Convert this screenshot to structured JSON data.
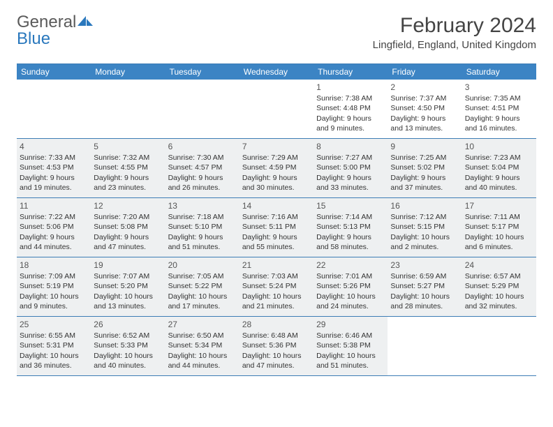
{
  "logo": {
    "general": "General",
    "blue": "Blue"
  },
  "header": {
    "title": "February 2024",
    "location": "Lingfield, England, United Kingdom"
  },
  "colors": {
    "header_bg": "#3c84c4",
    "border": "#3c7cb5",
    "shaded": "#eef0f1",
    "text": "#333333"
  },
  "weekdays": [
    "Sunday",
    "Monday",
    "Tuesday",
    "Wednesday",
    "Thursday",
    "Friday",
    "Saturday"
  ],
  "weeks": [
    [
      null,
      null,
      null,
      null,
      {
        "n": "1",
        "sr": "Sunrise: 7:38 AM",
        "ss": "Sunset: 4:48 PM",
        "d1": "Daylight: 9 hours",
        "d2": "and 9 minutes."
      },
      {
        "n": "2",
        "sr": "Sunrise: 7:37 AM",
        "ss": "Sunset: 4:50 PM",
        "d1": "Daylight: 9 hours",
        "d2": "and 13 minutes."
      },
      {
        "n": "3",
        "sr": "Sunrise: 7:35 AM",
        "ss": "Sunset: 4:51 PM",
        "d1": "Daylight: 9 hours",
        "d2": "and 16 minutes."
      }
    ],
    [
      {
        "n": "4",
        "sr": "Sunrise: 7:33 AM",
        "ss": "Sunset: 4:53 PM",
        "d1": "Daylight: 9 hours",
        "d2": "and 19 minutes.",
        "sh": true
      },
      {
        "n": "5",
        "sr": "Sunrise: 7:32 AM",
        "ss": "Sunset: 4:55 PM",
        "d1": "Daylight: 9 hours",
        "d2": "and 23 minutes.",
        "sh": true
      },
      {
        "n": "6",
        "sr": "Sunrise: 7:30 AM",
        "ss": "Sunset: 4:57 PM",
        "d1": "Daylight: 9 hours",
        "d2": "and 26 minutes.",
        "sh": true
      },
      {
        "n": "7",
        "sr": "Sunrise: 7:29 AM",
        "ss": "Sunset: 4:59 PM",
        "d1": "Daylight: 9 hours",
        "d2": "and 30 minutes.",
        "sh": true
      },
      {
        "n": "8",
        "sr": "Sunrise: 7:27 AM",
        "ss": "Sunset: 5:00 PM",
        "d1": "Daylight: 9 hours",
        "d2": "and 33 minutes.",
        "sh": true
      },
      {
        "n": "9",
        "sr": "Sunrise: 7:25 AM",
        "ss": "Sunset: 5:02 PM",
        "d1": "Daylight: 9 hours",
        "d2": "and 37 minutes.",
        "sh": true
      },
      {
        "n": "10",
        "sr": "Sunrise: 7:23 AM",
        "ss": "Sunset: 5:04 PM",
        "d1": "Daylight: 9 hours",
        "d2": "and 40 minutes.",
        "sh": true
      }
    ],
    [
      {
        "n": "11",
        "sr": "Sunrise: 7:22 AM",
        "ss": "Sunset: 5:06 PM",
        "d1": "Daylight: 9 hours",
        "d2": "and 44 minutes.",
        "sh": true
      },
      {
        "n": "12",
        "sr": "Sunrise: 7:20 AM",
        "ss": "Sunset: 5:08 PM",
        "d1": "Daylight: 9 hours",
        "d2": "and 47 minutes.",
        "sh": true
      },
      {
        "n": "13",
        "sr": "Sunrise: 7:18 AM",
        "ss": "Sunset: 5:10 PM",
        "d1": "Daylight: 9 hours",
        "d2": "and 51 minutes.",
        "sh": true
      },
      {
        "n": "14",
        "sr": "Sunrise: 7:16 AM",
        "ss": "Sunset: 5:11 PM",
        "d1": "Daylight: 9 hours",
        "d2": "and 55 minutes.",
        "sh": true
      },
      {
        "n": "15",
        "sr": "Sunrise: 7:14 AM",
        "ss": "Sunset: 5:13 PM",
        "d1": "Daylight: 9 hours",
        "d2": "and 58 minutes.",
        "sh": true
      },
      {
        "n": "16",
        "sr": "Sunrise: 7:12 AM",
        "ss": "Sunset: 5:15 PM",
        "d1": "Daylight: 10 hours",
        "d2": "and 2 minutes.",
        "sh": true
      },
      {
        "n": "17",
        "sr": "Sunrise: 7:11 AM",
        "ss": "Sunset: 5:17 PM",
        "d1": "Daylight: 10 hours",
        "d2": "and 6 minutes.",
        "sh": true
      }
    ],
    [
      {
        "n": "18",
        "sr": "Sunrise: 7:09 AM",
        "ss": "Sunset: 5:19 PM",
        "d1": "Daylight: 10 hours",
        "d2": "and 9 minutes.",
        "sh": true
      },
      {
        "n": "19",
        "sr": "Sunrise: 7:07 AM",
        "ss": "Sunset: 5:20 PM",
        "d1": "Daylight: 10 hours",
        "d2": "and 13 minutes.",
        "sh": true
      },
      {
        "n": "20",
        "sr": "Sunrise: 7:05 AM",
        "ss": "Sunset: 5:22 PM",
        "d1": "Daylight: 10 hours",
        "d2": "and 17 minutes.",
        "sh": true
      },
      {
        "n": "21",
        "sr": "Sunrise: 7:03 AM",
        "ss": "Sunset: 5:24 PM",
        "d1": "Daylight: 10 hours",
        "d2": "and 21 minutes.",
        "sh": true
      },
      {
        "n": "22",
        "sr": "Sunrise: 7:01 AM",
        "ss": "Sunset: 5:26 PM",
        "d1": "Daylight: 10 hours",
        "d2": "and 24 minutes.",
        "sh": true
      },
      {
        "n": "23",
        "sr": "Sunrise: 6:59 AM",
        "ss": "Sunset: 5:27 PM",
        "d1": "Daylight: 10 hours",
        "d2": "and 28 minutes.",
        "sh": true
      },
      {
        "n": "24",
        "sr": "Sunrise: 6:57 AM",
        "ss": "Sunset: 5:29 PM",
        "d1": "Daylight: 10 hours",
        "d2": "and 32 minutes.",
        "sh": true
      }
    ],
    [
      {
        "n": "25",
        "sr": "Sunrise: 6:55 AM",
        "ss": "Sunset: 5:31 PM",
        "d1": "Daylight: 10 hours",
        "d2": "and 36 minutes.",
        "sh": true
      },
      {
        "n": "26",
        "sr": "Sunrise: 6:52 AM",
        "ss": "Sunset: 5:33 PM",
        "d1": "Daylight: 10 hours",
        "d2": "and 40 minutes.",
        "sh": true
      },
      {
        "n": "27",
        "sr": "Sunrise: 6:50 AM",
        "ss": "Sunset: 5:34 PM",
        "d1": "Daylight: 10 hours",
        "d2": "and 44 minutes.",
        "sh": true
      },
      {
        "n": "28",
        "sr": "Sunrise: 6:48 AM",
        "ss": "Sunset: 5:36 PM",
        "d1": "Daylight: 10 hours",
        "d2": "and 47 minutes.",
        "sh": true
      },
      {
        "n": "29",
        "sr": "Sunrise: 6:46 AM",
        "ss": "Sunset: 5:38 PM",
        "d1": "Daylight: 10 hours",
        "d2": "and 51 minutes.",
        "sh": true
      },
      null,
      null
    ]
  ]
}
